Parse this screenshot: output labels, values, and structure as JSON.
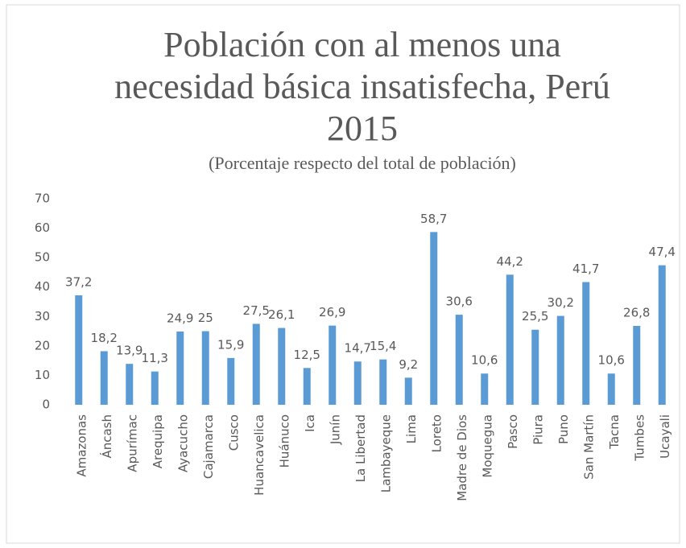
{
  "chart_data": {
    "type": "bar",
    "title": "Población con al menos una necesidad básica insatisfecha, Perú 2015",
    "subtitle": "(Porcentaje respecto del total de población)",
    "categories": [
      "Amazonas",
      "Áncash",
      "Apurímac",
      "Arequipa",
      "Ayacucho",
      "Cajamarca",
      "Cusco",
      "Huancavelica",
      "Huánuco",
      "Ica",
      "Junín",
      "La Libertad",
      "Lambayeque",
      "Lima",
      "Loreto",
      "Madre de Dios",
      "Moquegua",
      "Pasco",
      "Piura",
      "Puno",
      "San Martín",
      "Tacna",
      "Tumbes",
      "Ucayali"
    ],
    "values": [
      37.2,
      18.2,
      13.9,
      11.3,
      24.9,
      25,
      15.9,
      27.5,
      26.1,
      12.5,
      26.9,
      14.7,
      15.4,
      9.2,
      58.7,
      30.6,
      10.6,
      44.2,
      25.5,
      30.2,
      41.7,
      10.6,
      26.8,
      47.4
    ],
    "value_labels": [
      "37,2",
      "18,2",
      "13,9",
      "11,3",
      "24,9",
      "25",
      "15,9",
      "27,5",
      "26,1",
      "12,5",
      "26,9",
      "14,7",
      "15,4",
      "9,2",
      "58,7",
      "30,6",
      "10,6",
      "44,2",
      "25,5",
      "30,2",
      "41,7",
      "10,6",
      "26,8",
      "47,4"
    ],
    "color": "#5b9bd5",
    "ylim": [
      0,
      70
    ],
    "yticks": [
      0,
      10,
      20,
      30,
      40,
      50,
      60,
      70
    ],
    "grid": false
  }
}
